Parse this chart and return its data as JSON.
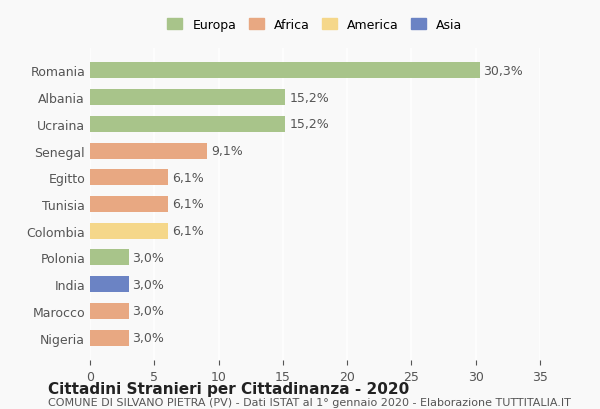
{
  "countries": [
    "Romania",
    "Albania",
    "Ucraina",
    "Senegal",
    "Egitto",
    "Tunisia",
    "Colombia",
    "Polonia",
    "India",
    "Marocco",
    "Nigeria"
  ],
  "values": [
    30.3,
    15.2,
    15.2,
    9.1,
    6.1,
    6.1,
    6.1,
    3.0,
    3.0,
    3.0,
    3.0
  ],
  "labels": [
    "30,3%",
    "15,2%",
    "15,2%",
    "9,1%",
    "6,1%",
    "6,1%",
    "6,1%",
    "3,0%",
    "3,0%",
    "3,0%",
    "3,0%"
  ],
  "colors": [
    "#a8c48a",
    "#a8c48a",
    "#a8c48a",
    "#e8a882",
    "#e8a882",
    "#e8a882",
    "#f5d78a",
    "#a8c48a",
    "#6b83c4",
    "#e8a882",
    "#e8a882"
  ],
  "continent": [
    "Europa",
    "Europa",
    "Europa",
    "Africa",
    "Africa",
    "Africa",
    "America",
    "Europa",
    "Asia",
    "Africa",
    "Africa"
  ],
  "legend_labels": [
    "Europa",
    "Africa",
    "America",
    "Asia"
  ],
  "legend_colors": [
    "#a8c48a",
    "#e8a882",
    "#f5d78a",
    "#6b83c4"
  ],
  "xlim": [
    0,
    35
  ],
  "xticks": [
    0,
    5,
    10,
    15,
    20,
    25,
    30,
    35
  ],
  "title_main": "Cittadini Stranieri per Cittadinanza - 2020",
  "title_sub": "COMUNE DI SILVANO PIETRA (PV) - Dati ISTAT al 1° gennaio 2020 - Elaborazione TUTTITALIA.IT",
  "bg_color": "#f9f9f9",
  "bar_height": 0.6,
  "label_fontsize": 9,
  "title_fontsize": 11,
  "subtitle_fontsize": 8
}
